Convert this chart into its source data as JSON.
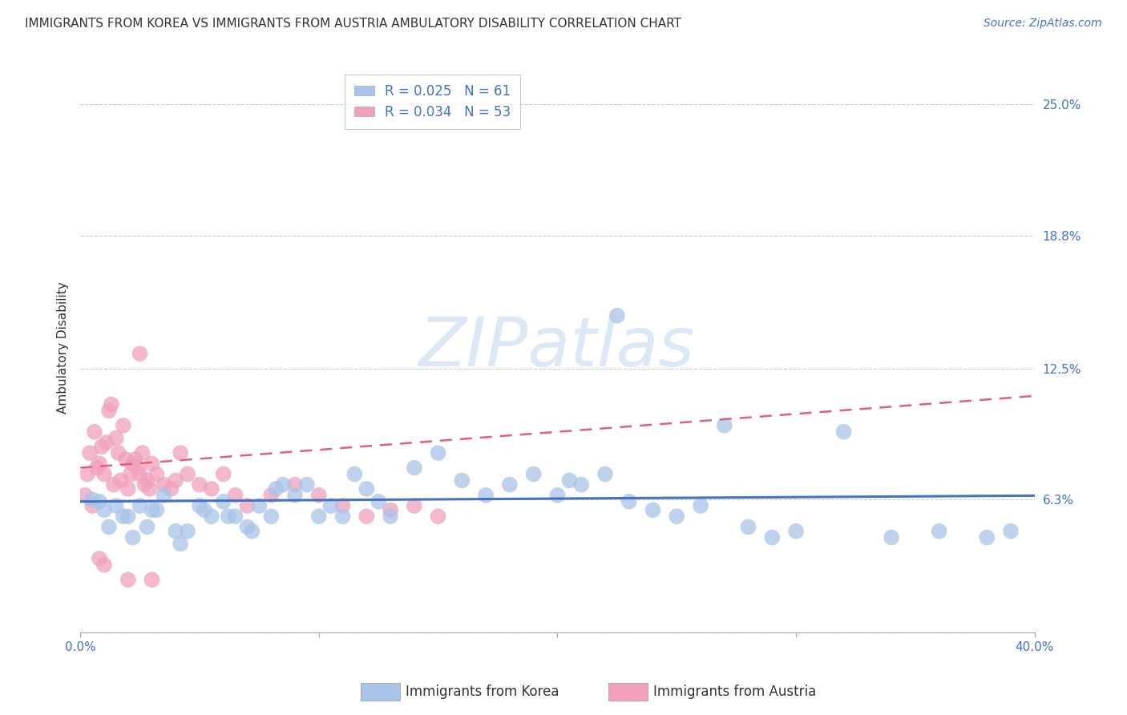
{
  "title": "IMMIGRANTS FROM KOREA VS IMMIGRANTS FROM AUSTRIA AMBULATORY DISABILITY CORRELATION CHART",
  "source": "Source: ZipAtlas.com",
  "ylabel": "Ambulatory Disability",
  "xlim": [
    0.0,
    40.0
  ],
  "ylim": [
    0.0,
    27.0
  ],
  "yticks": [
    0.0,
    6.3,
    12.5,
    18.8,
    25.0
  ],
  "ytick_labels": [
    "",
    "6.3%",
    "12.5%",
    "18.8%",
    "25.0%"
  ],
  "xticks": [
    0.0,
    10.0,
    20.0,
    30.0,
    40.0
  ],
  "xtick_labels": [
    "0.0%",
    "",
    "",
    "",
    "40.0%"
  ],
  "korea_R": 0.025,
  "korea_N": 61,
  "austria_R": 0.034,
  "austria_N": 53,
  "korea_color": "#a8c4e8",
  "austria_color": "#f0a0bc",
  "korea_line_color": "#4472c4",
  "austria_line_color": "#e06080",
  "background_color": "#ffffff",
  "watermark": "ZIPatlas",
  "watermark_color": "#dce8f5",
  "legend_korea_label": "Immigrants from Korea",
  "legend_austria_label": "Immigrants from Austria",
  "korea_trend_intercept": 6.2,
  "korea_trend_slope": 0.007,
  "austria_trend_intercept": 7.8,
  "austria_trend_slope": 0.085,
  "korea_scatter_x": [
    0.5,
    0.8,
    1.0,
    1.5,
    2.0,
    2.5,
    3.0,
    3.5,
    4.0,
    4.5,
    5.0,
    5.5,
    6.0,
    6.5,
    7.0,
    7.5,
    8.0,
    8.5,
    9.0,
    9.5,
    10.0,
    10.5,
    11.0,
    11.5,
    12.0,
    12.5,
    13.0,
    14.0,
    15.0,
    16.0,
    17.0,
    18.0,
    19.0,
    20.0,
    20.5,
    21.0,
    22.0,
    23.0,
    24.0,
    25.0,
    26.0,
    27.0,
    28.0,
    29.0,
    30.0,
    32.0,
    34.0,
    36.0,
    38.0,
    39.0,
    1.2,
    1.8,
    2.2,
    2.8,
    3.2,
    4.2,
    5.2,
    6.2,
    7.2,
    8.2,
    22.5
  ],
  "korea_scatter_y": [
    6.3,
    6.2,
    5.8,
    6.0,
    5.5,
    6.0,
    5.8,
    6.5,
    4.8,
    4.8,
    6.0,
    5.5,
    6.2,
    5.5,
    5.0,
    6.0,
    5.5,
    7.0,
    6.5,
    7.0,
    5.5,
    6.0,
    5.5,
    7.5,
    6.8,
    6.2,
    5.5,
    7.8,
    8.5,
    7.2,
    6.5,
    7.0,
    7.5,
    6.5,
    7.2,
    7.0,
    7.5,
    6.2,
    5.8,
    5.5,
    6.0,
    9.8,
    5.0,
    4.5,
    4.8,
    9.5,
    4.5,
    4.8,
    4.5,
    4.8,
    5.0,
    5.5,
    4.5,
    5.0,
    5.8,
    4.2,
    5.8,
    5.5,
    4.8,
    6.8,
    15.0
  ],
  "austria_scatter_x": [
    0.2,
    0.3,
    0.4,
    0.5,
    0.6,
    0.7,
    0.8,
    0.9,
    1.0,
    1.1,
    1.2,
    1.3,
    1.4,
    1.5,
    1.6,
    1.7,
    1.8,
    1.9,
    2.0,
    2.1,
    2.2,
    2.3,
    2.4,
    2.5,
    2.6,
    2.7,
    2.8,
    2.9,
    3.0,
    3.2,
    3.5,
    4.0,
    4.5,
    5.0,
    5.5,
    6.0,
    6.5,
    7.0,
    8.0,
    9.0,
    10.0,
    11.0,
    12.0,
    13.0,
    14.0,
    15.0,
    3.8,
    4.2,
    0.8,
    1.0,
    2.0,
    2.5,
    3.0
  ],
  "austria_scatter_y": [
    6.5,
    7.5,
    8.5,
    6.0,
    9.5,
    7.8,
    8.0,
    8.8,
    7.5,
    9.0,
    10.5,
    10.8,
    7.0,
    9.2,
    8.5,
    7.2,
    9.8,
    8.2,
    6.8,
    7.5,
    8.0,
    8.2,
    7.8,
    7.5,
    8.5,
    7.0,
    7.2,
    6.8,
    8.0,
    7.5,
    7.0,
    7.2,
    7.5,
    7.0,
    6.8,
    7.5,
    6.5,
    6.0,
    6.5,
    7.0,
    6.5,
    6.0,
    5.5,
    5.8,
    6.0,
    5.5,
    6.8,
    8.5,
    3.5,
    3.2,
    2.5,
    13.2,
    2.5
  ],
  "title_fontsize": 11,
  "source_fontsize": 10,
  "label_fontsize": 11,
  "tick_fontsize": 11,
  "legend_fontsize": 12
}
